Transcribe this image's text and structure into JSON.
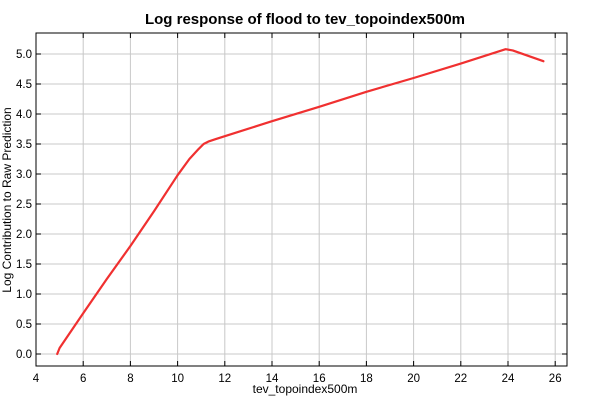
{
  "chart_data": {
    "type": "line",
    "title": "Log response of flood to tev_topoindex500m",
    "xlabel": "tev_topoindex500m",
    "ylabel": "Log Contribution to Raw Prediction",
    "xlim": [
      4,
      26.5
    ],
    "ylim": [
      -0.2,
      5.35
    ],
    "xticks": [
      4,
      6,
      8,
      10,
      12,
      14,
      16,
      18,
      20,
      22,
      24,
      26
    ],
    "yticks": [
      0.0,
      0.5,
      1.0,
      1.5,
      2.0,
      2.5,
      3.0,
      3.5,
      4.0,
      4.5,
      5.0
    ],
    "ytick_labels": [
      "0.0",
      "0.5",
      "1.0",
      "1.5",
      "2.0",
      "2.5",
      "3.0",
      "3.5",
      "4.0",
      "4.5",
      "5.0"
    ],
    "grid": true,
    "series": [
      {
        "name": "response",
        "color": "#f03030",
        "x": [
          4.9,
          5.0,
          6.0,
          7.0,
          8.0,
          9.0,
          10.0,
          10.5,
          10.9,
          11.1,
          11.3,
          11.6,
          12.0,
          14.0,
          16.0,
          18.0,
          20.0,
          22.0,
          23.9,
          24.2,
          25.5
        ],
        "y": [
          0.0,
          0.1,
          0.68,
          1.25,
          1.8,
          2.38,
          2.98,
          3.25,
          3.42,
          3.5,
          3.54,
          3.58,
          3.63,
          3.88,
          4.12,
          4.37,
          4.6,
          4.84,
          5.08,
          5.06,
          4.88
        ]
      }
    ]
  }
}
